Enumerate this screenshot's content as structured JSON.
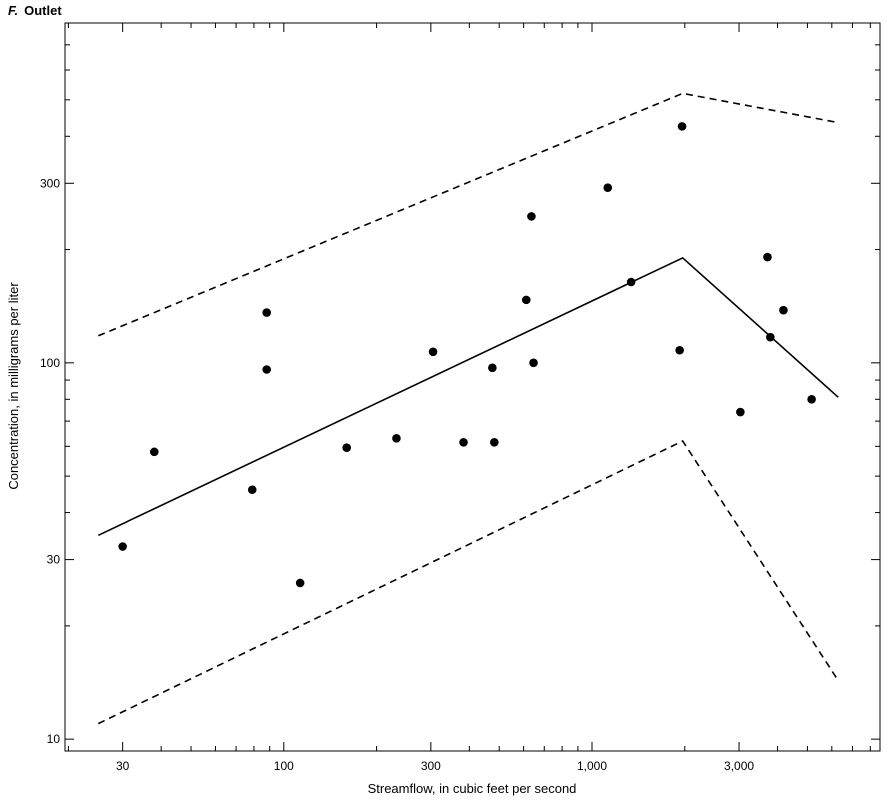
{
  "chart_data": {
    "type": "scatter",
    "panel_letter": "F.",
    "title": "Outlet",
    "xlabel": "Streamflow, in cubic feet per second",
    "ylabel": "Concentration, in milligrams per liter",
    "x_scale": "log",
    "y_scale": "log",
    "xlim": [
      19.5,
      8600
    ],
    "ylim": [
      9.3,
      800
    ],
    "x_ticks": [
      {
        "value": 30,
        "label": "30"
      },
      {
        "value": 100,
        "label": "100"
      },
      {
        "value": 300,
        "label": "300"
      },
      {
        "value": 1000,
        "label": "1,000"
      },
      {
        "value": 3000,
        "label": "3,000"
      }
    ],
    "y_ticks": [
      {
        "value": 10,
        "label": "10"
      },
      {
        "value": 30,
        "label": "30"
      },
      {
        "value": 100,
        "label": "100"
      },
      {
        "value": 300,
        "label": "300"
      }
    ],
    "grid": false,
    "legend": "none",
    "points": [
      {
        "x": 30,
        "y": 32.5
      },
      {
        "x": 38,
        "y": 58
      },
      {
        "x": 79,
        "y": 46
      },
      {
        "x": 88,
        "y": 136
      },
      {
        "x": 88,
        "y": 96
      },
      {
        "x": 113,
        "y": 26
      },
      {
        "x": 160,
        "y": 59.5
      },
      {
        "x": 232,
        "y": 63
      },
      {
        "x": 305,
        "y": 107
      },
      {
        "x": 383,
        "y": 61.5
      },
      {
        "x": 475,
        "y": 97
      },
      {
        "x": 482,
        "y": 61.5
      },
      {
        "x": 612,
        "y": 147
      },
      {
        "x": 636,
        "y": 245
      },
      {
        "x": 646,
        "y": 100
      },
      {
        "x": 1125,
        "y": 292
      },
      {
        "x": 1340,
        "y": 164
      },
      {
        "x": 1925,
        "y": 108
      },
      {
        "x": 1960,
        "y": 425
      },
      {
        "x": 3030,
        "y": 74
      },
      {
        "x": 3710,
        "y": 191
      },
      {
        "x": 3790,
        "y": 117
      },
      {
        "x": 4180,
        "y": 138
      },
      {
        "x": 5160,
        "y": 80
      }
    ],
    "lines": [
      {
        "name": "",
        "style": "solid",
        "x": [
          25,
          1970,
          6300
        ],
        "y": [
          34.8,
          190,
          81
        ]
      },
      {
        "name": "",
        "style": "dashed",
        "x": [
          25,
          1970,
          6300
        ],
        "y": [
          118,
          520,
          435
        ]
      },
      {
        "name": "",
        "style": "dashed",
        "x": [
          25,
          1970,
          6300
        ],
        "y": [
          11,
          62,
          14.3
        ]
      }
    ],
    "colors": {
      "points": "#000000",
      "lines": "#000000",
      "axes": "#000000"
    }
  }
}
